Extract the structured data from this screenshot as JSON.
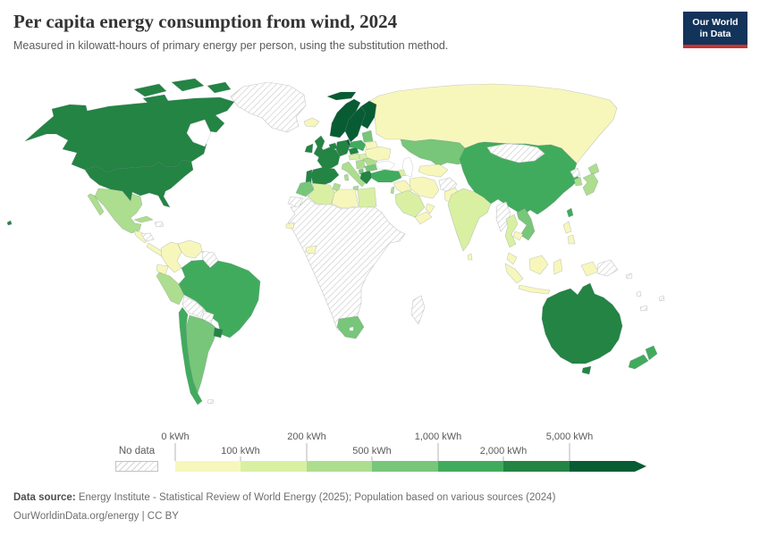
{
  "header": {
    "title": "Per capita energy consumption from wind, 2024",
    "subtitle": "Measured in kilowatt-hours of primary energy per person, using the substitution method."
  },
  "logo": {
    "line1": "Our World",
    "line2": "in Data",
    "bg_color": "#12335a",
    "accent_color": "#c7342f"
  },
  "legend": {
    "no_data_label": "No data",
    "ticks": [
      "0 kWh",
      "100 kWh",
      "200 kWh",
      "500 kWh",
      "1,000 kWh",
      "2,000 kWh",
      "5,000 kWh"
    ]
  },
  "chart_data": {
    "type": "choropleth",
    "title": "Per capita energy consumption from wind, 2024",
    "unit": "kWh per person",
    "legend_position": "bottom",
    "bin_labels": [
      "0–100 kWh",
      "100–200 kWh",
      "200–500 kWh",
      "500–1,000 kWh",
      "1,000–2,000 kWh",
      "2,000–5,000 kWh",
      "5,000+ kWh"
    ],
    "bin_colors": [
      "#f7f7bc",
      "#d9f0a3",
      "#addd8e",
      "#78c679",
      "#41ab5d",
      "#238443",
      "#075c33"
    ],
    "no_data_style": "gray-diagonal-hatch",
    "regions": {
      "Canada": 5,
      "United States": 5,
      "Greenland": -1,
      "Iceland": 0,
      "Mexico": 2,
      "Cuba": 2,
      "Dominican Republic": -1,
      "Guatemala": 0,
      "Honduras": -1,
      "Panama": 0,
      "Colombia": 0,
      "Venezuela": 0,
      "Guyana": -1,
      "Ecuador": 0,
      "Peru": 2,
      "Brazil": 4,
      "Bolivia": -1,
      "Paraguay": -1,
      "Chile": 4,
      "Argentina": 3,
      "Uruguay": 5,
      "Falkland Islands": -1,
      "Norway": 6,
      "Sweden": 6,
      "Finland": 6,
      "Denmark": 6,
      "United Kingdom": 5,
      "Ireland": 5,
      "Netherlands": 5,
      "Germany": 5,
      "France": 5,
      "Spain": 5,
      "Portugal": 5,
      "Italy": 2,
      "Czechia": 5,
      "Poland": 4,
      "Austria": 1,
      "Hungary": 1,
      "Croatia": 2,
      "Albania": 3,
      "Greece": 5,
      "Bulgaria": 3,
      "Romania": 2,
      "Lithuania": 3,
      "Belarus": 0,
      "Ukraine": 0,
      "Russia": 0,
      "Kazakhstan": 3,
      "Azerbaijan": 1,
      "Turkey": 4,
      "Iraq": 0,
      "Israel": 2,
      "Iran": 0,
      "Afghanistan": -1,
      "Uzbekistan": 0,
      "Pakistan": 0,
      "Saudi Arabia": 1,
      "Yemen": 0,
      "Oman": 0,
      "Morocco": 3,
      "Western Sahara": -1,
      "Algeria": 1,
      "Tunisia": 2,
      "Libya": 0,
      "Egypt": 1,
      "Sub-Saharan Africa": -1,
      "Senegal": 0,
      "Ghana": 0,
      "South Africa": 3,
      "Madagascar": -1,
      "India": 1,
      "Sri Lanka": 0,
      "China": 4,
      "Mongolia": -1,
      "North Korea": -1,
      "South Korea": 2,
      "Japan": 2,
      "Taiwan": 4,
      "Myanmar": -1,
      "Thailand": 1,
      "Vietnam": 3,
      "Cambodia": 0,
      "Malaysia": 0,
      "Philippines": 0,
      "Indonesia": 0,
      "Papua New Guinea": -1,
      "Solomon Islands": -1,
      "Vanuatu": -1,
      "Fiji": -1,
      "New Caledonia": -1,
      "Australia": 5,
      "New Zealand": 4
    }
  },
  "footer": {
    "source_label": "Data source:",
    "source_text": " Energy Institute - Statistical Review of World Energy (2025); Population based on various sources (2024)",
    "license_line": "OurWorldinData.org/energy | CC BY"
  }
}
